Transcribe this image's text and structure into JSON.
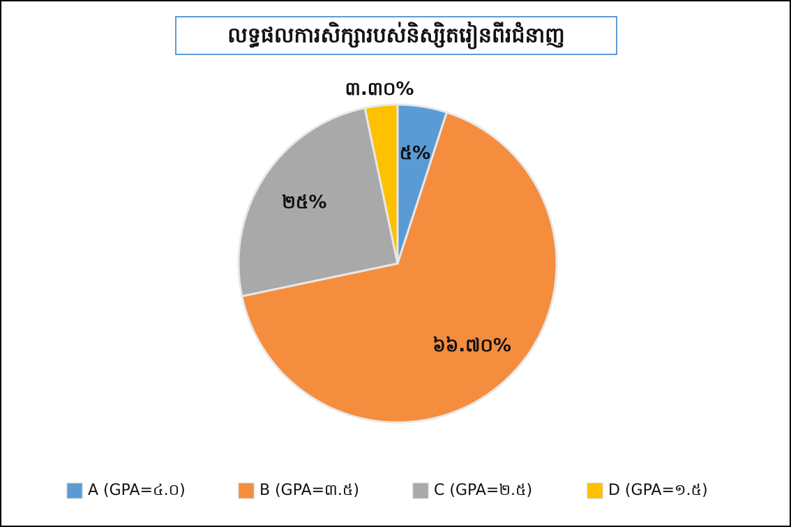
{
  "chart_data": {
    "type": "pie",
    "title": "លទ្ធផលការសិក្សារបស់និស្សិតរៀនពីរជំនាញ",
    "categories": [
      "A (GPA=៤.០)",
      "B (GPA=៣.៥)",
      "C (GPA=២.៥)",
      "D (GPA=១.៥)"
    ],
    "values": [
      5,
      66.7,
      25,
      3.3
    ],
    "value_labels": [
      "៥%",
      "៦៦.៧០%",
      "២៥%",
      "៣.៣០%"
    ],
    "colors": [
      "#5b9bd5",
      "#f58d3e",
      "#a9a9a9",
      "#ffc000"
    ],
    "legend": "bottom"
  }
}
